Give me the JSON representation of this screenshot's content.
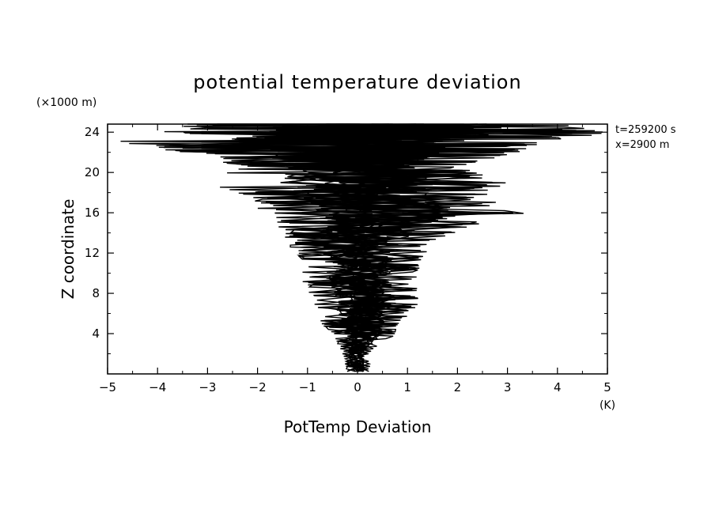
{
  "chart_data": {
    "type": "line",
    "title": "potential temperature deviation",
    "xlabel": "PotTemp Deviation",
    "ylabel": "Z coordinate",
    "x_unit": "(K)",
    "y_unit": "(×1000 m)",
    "annotations": [
      "t=259200 s",
      "x=2900 m"
    ],
    "xlim": [
      -5,
      5
    ],
    "ylim": [
      0,
      24.8
    ],
    "x_ticks": [
      -5,
      -4,
      -3,
      -2,
      -1,
      0,
      1,
      2,
      3,
      4,
      5
    ],
    "y_ticks": [
      4,
      8,
      12,
      16,
      20,
      24
    ],
    "grid": false,
    "legend": "none",
    "line_color": "#000000",
    "envelope": {
      "z": [
        0,
        2,
        4,
        5,
        7,
        9,
        11,
        13,
        14.5,
        16,
        17.5,
        19,
        20.5,
        22,
        23,
        24,
        24.8
      ],
      "max": [
        0.25,
        0.25,
        0.8,
        0.9,
        1.3,
        1.2,
        1.25,
        1.5,
        2.2,
        3.4,
        2.5,
        3.0,
        2.2,
        3.2,
        4.0,
        5.0,
        4.8
      ],
      "min": [
        -0.2,
        -0.3,
        -0.5,
        -0.8,
        -0.9,
        -1.1,
        -1.2,
        -1.4,
        -1.6,
        -2.0,
        -2.2,
        -3.0,
        -2.5,
        -3.5,
        -5.0,
        -4.0,
        -3.5
      ]
    },
    "series_count": 16
  }
}
